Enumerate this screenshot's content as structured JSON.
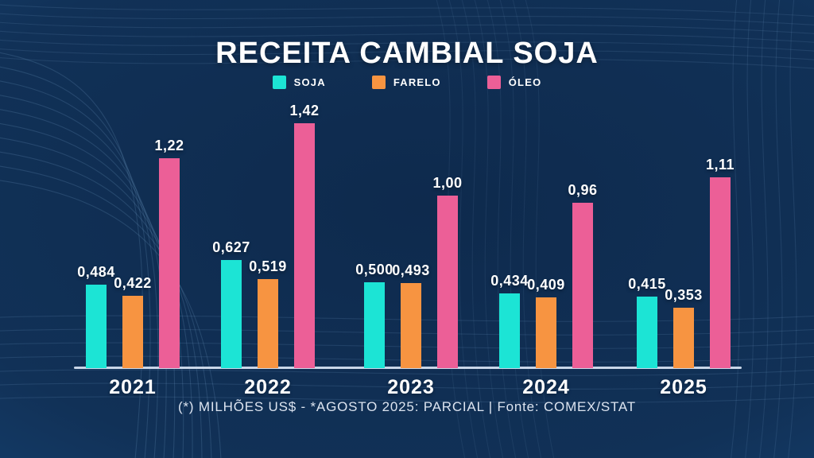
{
  "title": "RECEITA CAMBIAL SOJA",
  "legend": [
    {
      "label": "SOJA",
      "color": "#1ce4d5"
    },
    {
      "label": "FARELO",
      "color": "#f79441"
    },
    {
      "label": "ÓLEO",
      "color": "#ec5f97"
    }
  ],
  "footer": "(*) MILHÕES US$ - *AGOSTO 2025: PARCIAL | Fonte: COMEX/STAT",
  "chart_data": {
    "type": "bar",
    "title": "RECEITA CAMBIAL SOJA",
    "xlabel": "",
    "ylabel": "",
    "unit_note": "(*) MILHÕES US$ - *AGOSTO 2025: PARCIAL | Fonte: COMEX/STAT",
    "categories": [
      "2021",
      "2022",
      "2023",
      "2024",
      "2025"
    ],
    "series": [
      {
        "name": "SOJA",
        "color": "#1ce4d5",
        "values": [
          0.484,
          0.627,
          0.5,
          0.434,
          0.415
        ],
        "labels": [
          "0,484",
          "0,627",
          "0,500",
          "0,434",
          "0,415"
        ]
      },
      {
        "name": "FARELO",
        "color": "#f79441",
        "values": [
          0.422,
          0.519,
          0.493,
          0.409,
          0.353
        ],
        "labels": [
          "0,422",
          "0,519",
          "0,493",
          "0,409",
          "0,353"
        ]
      },
      {
        "name": "ÓLEO",
        "color": "#ec5f97",
        "values": [
          1.22,
          1.42,
          1.0,
          0.96,
          1.11
        ],
        "labels": [
          "1,22",
          "1,42",
          "1,00",
          "0,96",
          "1,11"
        ]
      }
    ],
    "ylim": [
      0,
      1.5
    ],
    "grid": false,
    "legend_position": "top",
    "value_label_decimal_separator": ","
  }
}
